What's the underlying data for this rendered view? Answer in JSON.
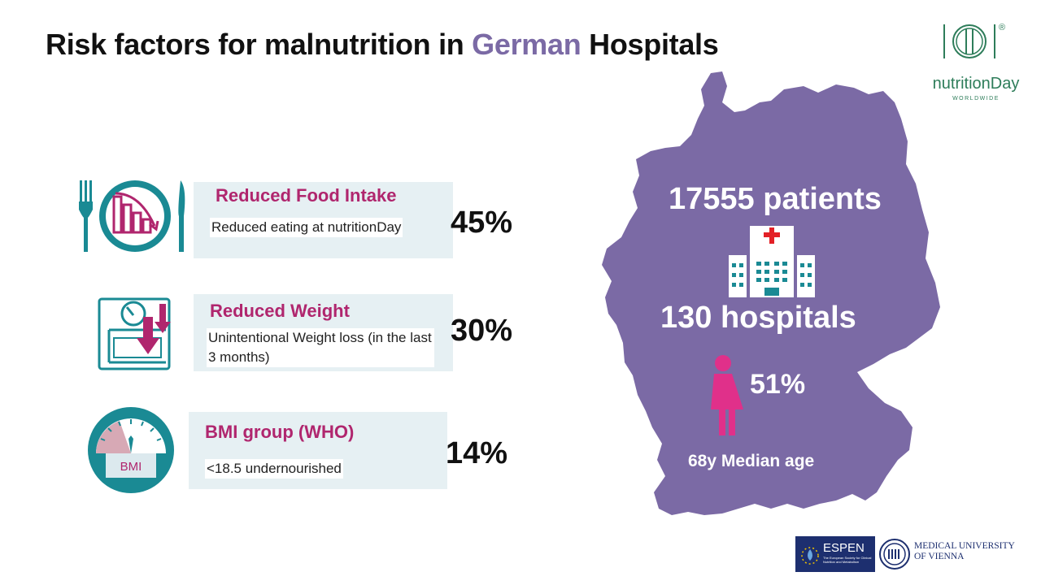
{
  "title": {
    "part1": "Risk factors for malnutrition in ",
    "highlight": "German",
    "part2": " Hospitals"
  },
  "logo": {
    "name": "nutritionDay",
    "subtitle": "WORLDWIDE",
    "registered": "®"
  },
  "factors": [
    {
      "title": "Reduced Food Intake",
      "description": "Reduced eating at nutritionDay",
      "percent": "45%",
      "icon": "plate-fork-knife-icon"
    },
    {
      "title": "Reduced Weight",
      "description": "Unintentional Weight loss (in the last 3 months)",
      "percent": "30%",
      "icon": "scale-arrow-down-icon"
    },
    {
      "title": "BMI group (WHO)",
      "description": "<18.5 undernourished",
      "percent": "14%",
      "icon": "bmi-gauge-icon",
      "icon_label": "BMI"
    }
  ],
  "map": {
    "patients": "17555 patients",
    "hospitals": "130 hospitals",
    "female_pct": "51%",
    "median_age": "68y Median age",
    "color": "#7b6aa5"
  },
  "footer": {
    "espen": "ESPEN",
    "espen_sub": "The European Society for Clinical Nutrition and Metabolism",
    "university": "MEDICAL UNIVERSITY OF VIENNA"
  },
  "colors": {
    "accent": "#b0266e",
    "teal": "#1a8a94",
    "purple": "#7b6aa5",
    "card_bg": "#e6f0f3"
  }
}
